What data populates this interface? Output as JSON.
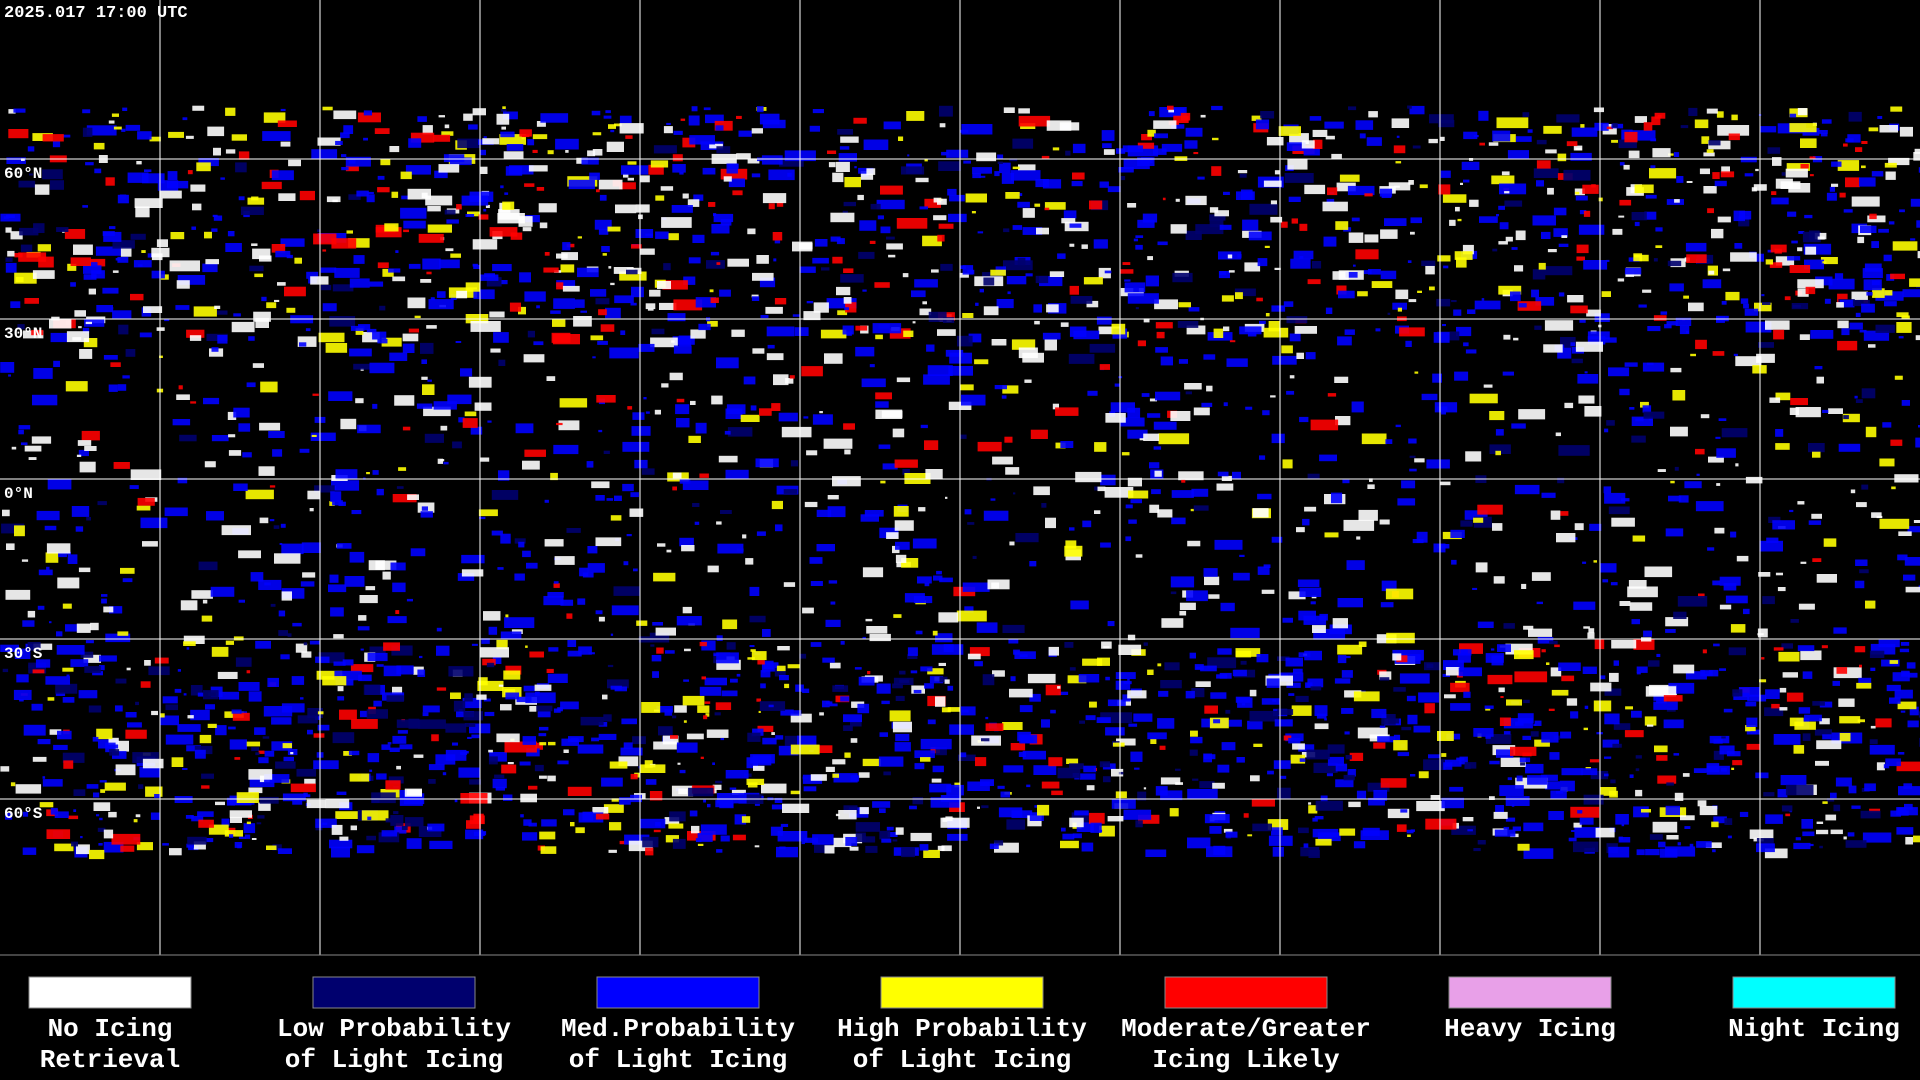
{
  "header": {
    "timestamp": "2025.017 17:00 UTC"
  },
  "map": {
    "lat_labels": [
      "60°N",
      "30°N",
      "0°N",
      "30°S",
      "60°S"
    ]
  },
  "legend": {
    "items": [
      {
        "label": [
          "No Icing",
          "Retrieval"
        ],
        "color": "#ffffff"
      },
      {
        "label": [
          "Low Probability",
          "of Light Icing"
        ],
        "color": "#00006e"
      },
      {
        "label": [
          "Med.Probability",
          "of Light Icing"
        ],
        "color": "#0000ff"
      },
      {
        "label": [
          "High Probability",
          "of Light Icing"
        ],
        "color": "#ffff00"
      },
      {
        "label": [
          "Moderate/Greater",
          "Icing Likely"
        ],
        "color": "#ff0000"
      },
      {
        "label": [
          "Heavy Icing"
        ],
        "color": "#e8a0e8"
      },
      {
        "label": [
          "Night Icing"
        ],
        "color": "#00ffff"
      }
    ]
  }
}
